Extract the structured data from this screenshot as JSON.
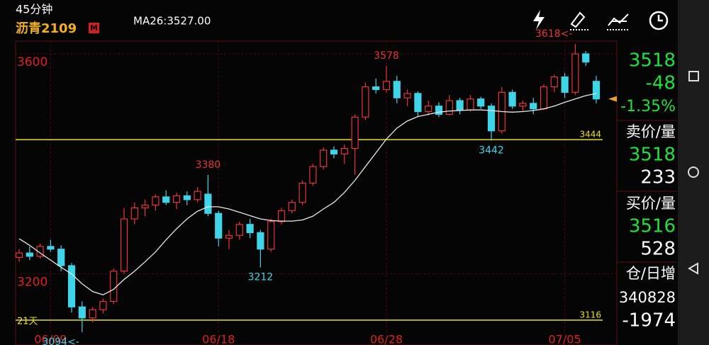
{
  "header": {
    "period": "45分钟",
    "symbol": "沥青2109",
    "badge": "M"
  },
  "chart_data": {
    "type": "candlestick",
    "ma": {
      "label": "MA26:3527.00",
      "values": [
        3264,
        3252,
        3238,
        3225,
        3212,
        3200,
        3182,
        3168,
        3162,
        3172,
        3190,
        3205,
        3222,
        3240,
        3262,
        3282,
        3300,
        3314,
        3322,
        3322,
        3318,
        3312,
        3306,
        3300,
        3297,
        3296,
        3296,
        3298,
        3305,
        3318,
        3330,
        3348,
        3370,
        3395,
        3420,
        3445,
        3465,
        3478,
        3486,
        3490,
        3494,
        3496,
        3497,
        3498,
        3498,
        3497,
        3495,
        3494,
        3495,
        3497,
        3500,
        3505,
        3512,
        3518,
        3524,
        3528
      ]
    },
    "ohlc": [
      [
        3230,
        3245,
        3222,
        3238
      ],
      [
        3238,
        3250,
        3225,
        3232
      ],
      [
        3232,
        3255,
        3228,
        3250
      ],
      [
        3250,
        3262,
        3240,
        3245
      ],
      [
        3245,
        3252,
        3205,
        3215
      ],
      [
        3215,
        3220,
        3130,
        3140
      ],
      [
        3140,
        3150,
        3094,
        3120
      ],
      [
        3120,
        3140,
        3112,
        3135
      ],
      [
        3135,
        3155,
        3128,
        3150
      ],
      [
        3150,
        3210,
        3145,
        3205
      ],
      [
        3205,
        3320,
        3200,
        3300
      ],
      [
        3300,
        3330,
        3290,
        3320
      ],
      [
        3320,
        3335,
        3305,
        3325
      ],
      [
        3325,
        3345,
        3315,
        3340
      ],
      [
        3340,
        3352,
        3325,
        3330
      ],
      [
        3330,
        3348,
        3318,
        3342
      ],
      [
        3342,
        3350,
        3325,
        3335
      ],
      [
        3335,
        3358,
        3330,
        3350
      ],
      [
        3345,
        3380,
        3305,
        3310
      ],
      [
        3310,
        3315,
        3250,
        3265
      ],
      [
        3265,
        3280,
        3245,
        3270
      ],
      [
        3270,
        3295,
        3262,
        3290
      ],
      [
        3290,
        3300,
        3265,
        3275
      ],
      [
        3275,
        3280,
        3212,
        3245
      ],
      [
        3245,
        3300,
        3240,
        3295
      ],
      [
        3295,
        3320,
        3290,
        3315
      ],
      [
        3315,
        3335,
        3310,
        3330
      ],
      [
        3330,
        3370,
        3325,
        3365
      ],
      [
        3365,
        3400,
        3360,
        3395
      ],
      [
        3395,
        3430,
        3390,
        3425
      ],
      [
        3425,
        3432,
        3410,
        3418
      ],
      [
        3418,
        3435,
        3400,
        3428
      ],
      [
        3428,
        3490,
        3380,
        3485
      ],
      [
        3485,
        3548,
        3480,
        3540
      ],
      [
        3540,
        3555,
        3528,
        3535
      ],
      [
        3535,
        3578,
        3530,
        3550
      ],
      [
        3550,
        3560,
        3510,
        3520
      ],
      [
        3520,
        3535,
        3505,
        3528
      ],
      [
        3528,
        3532,
        3485,
        3495
      ],
      [
        3495,
        3515,
        3488,
        3505
      ],
      [
        3505,
        3512,
        3485,
        3490
      ],
      [
        3490,
        3525,
        3488,
        3515
      ],
      [
        3515,
        3520,
        3490,
        3498
      ],
      [
        3498,
        3525,
        3495,
        3518
      ],
      [
        3518,
        3522,
        3500,
        3505
      ],
      [
        3505,
        3510,
        3442,
        3460
      ],
      [
        3460,
        3540,
        3455,
        3530
      ],
      [
        3530,
        3535,
        3500,
        3505
      ],
      [
        3505,
        3515,
        3495,
        3510
      ],
      [
        3510,
        3520,
        3490,
        3500
      ],
      [
        3500,
        3545,
        3498,
        3540
      ],
      [
        3540,
        3562,
        3530,
        3558
      ],
      [
        3558,
        3565,
        3520,
        3530
      ],
      [
        3530,
        3618,
        3525,
        3600
      ],
      [
        3600,
        3605,
        3578,
        3585
      ],
      [
        3550,
        3560,
        3510,
        3518
      ]
    ],
    "up_color": "#e8343a",
    "down_color": "#3fd4e8",
    "ma_color": "#e8e8e8",
    "ylim": [
      3103,
      3618
    ],
    "yticks": [
      3600,
      3200
    ],
    "xticks": [
      {
        "value": 3,
        "label": "06/09"
      },
      {
        "value": 19,
        "label": "06/18"
      },
      {
        "value": 35,
        "label": "06/28"
      },
      {
        "value": 52,
        "label": "07/05"
      }
    ],
    "hlines": [
      {
        "value": 3444
      },
      {
        "value": 3116,
        "tag": "21天"
      }
    ],
    "annotations": [
      {
        "index": 35,
        "value": 3578,
        "pos": "high"
      },
      {
        "index": 18,
        "value": 3380,
        "pos": "high"
      },
      {
        "index": 23,
        "value": 3212,
        "pos": "low"
      },
      {
        "index": 45,
        "value": 3442,
        "pos": "low"
      },
      {
        "index": 53,
        "value": 3618,
        "label": "3618<-",
        "pos": "high"
      },
      {
        "index": 6,
        "value": 3094,
        "label": "3094<-",
        "pos": "low"
      }
    ]
  },
  "quote": {
    "price": 3518,
    "change": -48,
    "change_pct": "-1.35%",
    "ask_label": "卖价/量",
    "ask": 3518,
    "ask_vol": 233,
    "bid_label": "买价/量",
    "bid": 3516,
    "bid_vol": 528,
    "oi_label": "仓/日增",
    "oi": 340828,
    "oi_change": -1974
  }
}
